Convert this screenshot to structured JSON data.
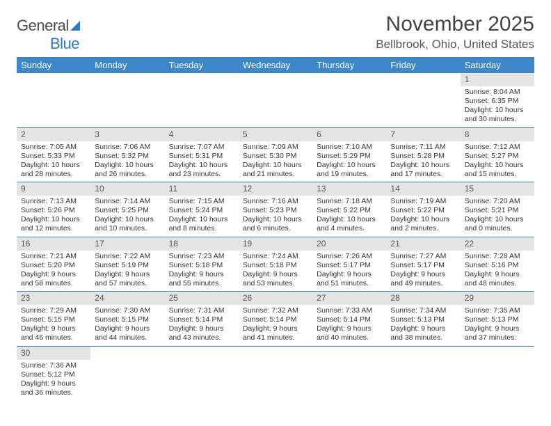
{
  "logo": {
    "text1": "General",
    "text2": "Blue"
  },
  "title": "November 2025",
  "location": "Bellbrook, Ohio, United States",
  "colors": {
    "header_bg": "#3b87c8",
    "header_text": "#ffffff",
    "daynum_bg": "#e4e4e4",
    "rule": "#3b87c8",
    "logo_blue": "#2f78c4"
  },
  "weekdays": [
    "Sunday",
    "Monday",
    "Tuesday",
    "Wednesday",
    "Thursday",
    "Friday",
    "Saturday"
  ],
  "weeks": [
    [
      null,
      null,
      null,
      null,
      null,
      null,
      {
        "n": "1",
        "sunrise": "Sunrise: 8:04 AM",
        "sunset": "Sunset: 6:35 PM",
        "daylight": "Daylight: 10 hours and 30 minutes."
      }
    ],
    [
      {
        "n": "2",
        "sunrise": "Sunrise: 7:05 AM",
        "sunset": "Sunset: 5:33 PM",
        "daylight": "Daylight: 10 hours and 28 minutes."
      },
      {
        "n": "3",
        "sunrise": "Sunrise: 7:06 AM",
        "sunset": "Sunset: 5:32 PM",
        "daylight": "Daylight: 10 hours and 26 minutes."
      },
      {
        "n": "4",
        "sunrise": "Sunrise: 7:07 AM",
        "sunset": "Sunset: 5:31 PM",
        "daylight": "Daylight: 10 hours and 23 minutes."
      },
      {
        "n": "5",
        "sunrise": "Sunrise: 7:09 AM",
        "sunset": "Sunset: 5:30 PM",
        "daylight": "Daylight: 10 hours and 21 minutes."
      },
      {
        "n": "6",
        "sunrise": "Sunrise: 7:10 AM",
        "sunset": "Sunset: 5:29 PM",
        "daylight": "Daylight: 10 hours and 19 minutes."
      },
      {
        "n": "7",
        "sunrise": "Sunrise: 7:11 AM",
        "sunset": "Sunset: 5:28 PM",
        "daylight": "Daylight: 10 hours and 17 minutes."
      },
      {
        "n": "8",
        "sunrise": "Sunrise: 7:12 AM",
        "sunset": "Sunset: 5:27 PM",
        "daylight": "Daylight: 10 hours and 15 minutes."
      }
    ],
    [
      {
        "n": "9",
        "sunrise": "Sunrise: 7:13 AM",
        "sunset": "Sunset: 5:26 PM",
        "daylight": "Daylight: 10 hours and 12 minutes."
      },
      {
        "n": "10",
        "sunrise": "Sunrise: 7:14 AM",
        "sunset": "Sunset: 5:25 PM",
        "daylight": "Daylight: 10 hours and 10 minutes."
      },
      {
        "n": "11",
        "sunrise": "Sunrise: 7:15 AM",
        "sunset": "Sunset: 5:24 PM",
        "daylight": "Daylight: 10 hours and 8 minutes."
      },
      {
        "n": "12",
        "sunrise": "Sunrise: 7:16 AM",
        "sunset": "Sunset: 5:23 PM",
        "daylight": "Daylight: 10 hours and 6 minutes."
      },
      {
        "n": "13",
        "sunrise": "Sunrise: 7:18 AM",
        "sunset": "Sunset: 5:22 PM",
        "daylight": "Daylight: 10 hours and 4 minutes."
      },
      {
        "n": "14",
        "sunrise": "Sunrise: 7:19 AM",
        "sunset": "Sunset: 5:22 PM",
        "daylight": "Daylight: 10 hours and 2 minutes."
      },
      {
        "n": "15",
        "sunrise": "Sunrise: 7:20 AM",
        "sunset": "Sunset: 5:21 PM",
        "daylight": "Daylight: 10 hours and 0 minutes."
      }
    ],
    [
      {
        "n": "16",
        "sunrise": "Sunrise: 7:21 AM",
        "sunset": "Sunset: 5:20 PM",
        "daylight": "Daylight: 9 hours and 58 minutes."
      },
      {
        "n": "17",
        "sunrise": "Sunrise: 7:22 AM",
        "sunset": "Sunset: 5:19 PM",
        "daylight": "Daylight: 9 hours and 57 minutes."
      },
      {
        "n": "18",
        "sunrise": "Sunrise: 7:23 AM",
        "sunset": "Sunset: 5:18 PM",
        "daylight": "Daylight: 9 hours and 55 minutes."
      },
      {
        "n": "19",
        "sunrise": "Sunrise: 7:24 AM",
        "sunset": "Sunset: 5:18 PM",
        "daylight": "Daylight: 9 hours and 53 minutes."
      },
      {
        "n": "20",
        "sunrise": "Sunrise: 7:26 AM",
        "sunset": "Sunset: 5:17 PM",
        "daylight": "Daylight: 9 hours and 51 minutes."
      },
      {
        "n": "21",
        "sunrise": "Sunrise: 7:27 AM",
        "sunset": "Sunset: 5:17 PM",
        "daylight": "Daylight: 9 hours and 49 minutes."
      },
      {
        "n": "22",
        "sunrise": "Sunrise: 7:28 AM",
        "sunset": "Sunset: 5:16 PM",
        "daylight": "Daylight: 9 hours and 48 minutes."
      }
    ],
    [
      {
        "n": "23",
        "sunrise": "Sunrise: 7:29 AM",
        "sunset": "Sunset: 5:15 PM",
        "daylight": "Daylight: 9 hours and 46 minutes."
      },
      {
        "n": "24",
        "sunrise": "Sunrise: 7:30 AM",
        "sunset": "Sunset: 5:15 PM",
        "daylight": "Daylight: 9 hours and 44 minutes."
      },
      {
        "n": "25",
        "sunrise": "Sunrise: 7:31 AM",
        "sunset": "Sunset: 5:14 PM",
        "daylight": "Daylight: 9 hours and 43 minutes."
      },
      {
        "n": "26",
        "sunrise": "Sunrise: 7:32 AM",
        "sunset": "Sunset: 5:14 PM",
        "daylight": "Daylight: 9 hours and 41 minutes."
      },
      {
        "n": "27",
        "sunrise": "Sunrise: 7:33 AM",
        "sunset": "Sunset: 5:14 PM",
        "daylight": "Daylight: 9 hours and 40 minutes."
      },
      {
        "n": "28",
        "sunrise": "Sunrise: 7:34 AM",
        "sunset": "Sunset: 5:13 PM",
        "daylight": "Daylight: 9 hours and 38 minutes."
      },
      {
        "n": "29",
        "sunrise": "Sunrise: 7:35 AM",
        "sunset": "Sunset: 5:13 PM",
        "daylight": "Daylight: 9 hours and 37 minutes."
      }
    ],
    [
      {
        "n": "30",
        "sunrise": "Sunrise: 7:36 AM",
        "sunset": "Sunset: 5:12 PM",
        "daylight": "Daylight: 9 hours and 36 minutes."
      },
      null,
      null,
      null,
      null,
      null,
      null
    ]
  ]
}
